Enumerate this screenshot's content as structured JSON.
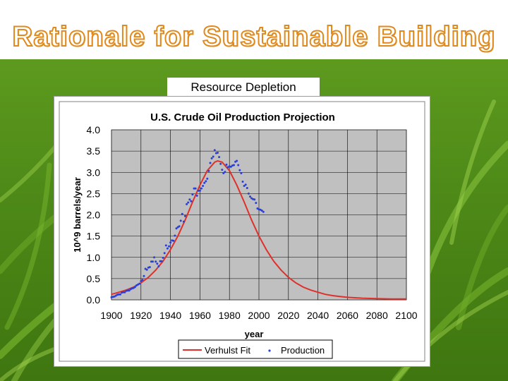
{
  "slide": {
    "title": "Rationale for Sustainable Building",
    "caption": "Resource Depletion"
  },
  "colors": {
    "title_fill": "#ffffff",
    "title_outline": "#e08a1e",
    "plot_bg": "#c0c0c0",
    "fit_line": "#e0302a",
    "points": "#2a3fd8"
  },
  "chart_data": {
    "type": "line",
    "title": "U.S. Crude Oil Production Projection",
    "xlabel": "year",
    "ylabel": "10^9 barrels/year",
    "xlim": [
      1900,
      2100
    ],
    "ylim": [
      0,
      4
    ],
    "x_ticks": [
      1900,
      1920,
      1940,
      1960,
      1980,
      2000,
      2020,
      2040,
      2060,
      2080,
      2100
    ],
    "x_tick_labels": [
      "1900",
      "1920",
      "1940",
      "1960",
      "1980",
      "2000",
      "2020",
      "2040",
      "2060",
      "2080",
      "2100"
    ],
    "y_ticks": [
      0,
      0.5,
      1,
      1.5,
      2,
      2.5,
      3,
      3.5,
      4
    ],
    "y_tick_labels": [
      "0.0",
      "0.5",
      "1.0",
      "1.5",
      "2.0",
      "2.5",
      "3.0",
      "3.5",
      "4.0"
    ],
    "grid": true,
    "legend": {
      "position": "bottom",
      "entries": [
        "Verhulst Fit",
        "Production"
      ]
    },
    "series": [
      {
        "name": "Verhulst Fit",
        "type": "line",
        "x": [
          1900,
          1905,
          1910,
          1915,
          1920,
          1925,
          1930,
          1935,
          1940,
          1945,
          1950,
          1955,
          1960,
          1965,
          1970,
          1972,
          1975,
          1980,
          1985,
          1990,
          1995,
          2000,
          2005,
          2010,
          2015,
          2020,
          2025,
          2030,
          2035,
          2040,
          2045,
          2050,
          2055,
          2060,
          2070,
          2080,
          2090,
          2100
        ],
        "y": [
          0.13,
          0.18,
          0.23,
          0.3,
          0.4,
          0.53,
          0.7,
          0.91,
          1.18,
          1.5,
          1.88,
          2.3,
          2.7,
          3.04,
          3.24,
          3.27,
          3.24,
          3.04,
          2.7,
          2.3,
          1.88,
          1.5,
          1.18,
          0.91,
          0.7,
          0.53,
          0.4,
          0.3,
          0.23,
          0.18,
          0.13,
          0.1,
          0.08,
          0.06,
          0.04,
          0.03,
          0.02,
          0.02
        ]
      },
      {
        "name": "Production",
        "type": "scatter",
        "x": [
          1900,
          1901,
          1902,
          1903,
          1904,
          1905,
          1906,
          1907,
          1908,
          1909,
          1910,
          1911,
          1912,
          1913,
          1914,
          1915,
          1916,
          1917,
          1918,
          1919,
          1920,
          1921,
          1922,
          1923,
          1924,
          1925,
          1926,
          1927,
          1928,
          1929,
          1930,
          1931,
          1932,
          1933,
          1934,
          1935,
          1936,
          1937,
          1938,
          1939,
          1940,
          1941,
          1942,
          1943,
          1944,
          1945,
          1946,
          1947,
          1948,
          1949,
          1950,
          1951,
          1952,
          1953,
          1954,
          1955,
          1956,
          1957,
          1958,
          1959,
          1960,
          1961,
          1962,
          1963,
          1964,
          1965,
          1966,
          1967,
          1968,
          1969,
          1970,
          1971,
          1972,
          1973,
          1974,
          1975,
          1976,
          1977,
          1978,
          1979,
          1980,
          1981,
          1982,
          1983,
          1984,
          1985,
          1986,
          1987,
          1988,
          1989,
          1990,
          1991,
          1992,
          1993,
          1994,
          1995,
          1996,
          1997,
          1998,
          1999,
          2000,
          2001,
          2002,
          2003
        ],
        "y": [
          0.06,
          0.07,
          0.08,
          0.1,
          0.12,
          0.13,
          0.13,
          0.17,
          0.18,
          0.18,
          0.21,
          0.22,
          0.22,
          0.25,
          0.27,
          0.28,
          0.3,
          0.34,
          0.36,
          0.38,
          0.44,
          0.47,
          0.56,
          0.73,
          0.71,
          0.76,
          0.77,
          0.9,
          0.9,
          1.0,
          0.9,
          0.85,
          0.79,
          0.91,
          0.91,
          0.99,
          1.1,
          1.28,
          1.21,
          1.26,
          1.35,
          1.4,
          1.39,
          1.51,
          1.68,
          1.71,
          1.73,
          1.86,
          2.02,
          1.84,
          1.97,
          2.25,
          2.29,
          2.36,
          2.32,
          2.48,
          2.62,
          2.62,
          2.45,
          2.57,
          2.57,
          2.62,
          2.68,
          2.75,
          2.79,
          2.85,
          3.03,
          3.22,
          3.33,
          3.37,
          3.52,
          3.45,
          3.46,
          3.36,
          3.2,
          3.06,
          2.98,
          3.01,
          3.18,
          3.12,
          3.14,
          3.13,
          3.16,
          3.17,
          3.25,
          3.27,
          3.17,
          3.05,
          2.98,
          2.78,
          2.68,
          2.71,
          2.63,
          2.5,
          2.43,
          2.39,
          2.37,
          2.36,
          2.28,
          2.15,
          2.13,
          2.12,
          2.1,
          2.07
        ]
      }
    ]
  }
}
